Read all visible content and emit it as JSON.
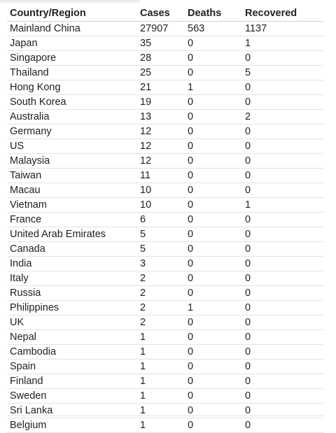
{
  "table": {
    "headers": {
      "country": "Country/Region",
      "cases": "Cases",
      "deaths": "Deaths",
      "recovered": "Recovered"
    },
    "rows": [
      [
        "Mainland China",
        "27907",
        "563",
        "1137"
      ],
      [
        "Japan",
        "35",
        "0",
        "1"
      ],
      [
        "Singapore",
        "28",
        "0",
        "0"
      ],
      [
        "Thailand",
        "25",
        "0",
        "5"
      ],
      [
        "Hong Kong",
        "21",
        "1",
        "0"
      ],
      [
        "South Korea",
        "19",
        "0",
        "0"
      ],
      [
        "Australia",
        "13",
        "0",
        "2"
      ],
      [
        "Germany",
        "12",
        "0",
        "0"
      ],
      [
        "US",
        "12",
        "0",
        "0"
      ],
      [
        "Malaysia",
        "12",
        "0",
        "0"
      ],
      [
        "Taiwan",
        "11",
        "0",
        "0"
      ],
      [
        "Macau",
        "10",
        "0",
        "0"
      ],
      [
        "Vietnam",
        "10",
        "0",
        "1"
      ],
      [
        "France",
        "6",
        "0",
        "0"
      ],
      [
        "United Arab Emirates",
        "5",
        "0",
        "0"
      ],
      [
        "Canada",
        "5",
        "0",
        "0"
      ],
      [
        "India",
        "3",
        "0",
        "0"
      ],
      [
        "Italy",
        "2",
        "0",
        "0"
      ],
      [
        "Russia",
        "2",
        "0",
        "0"
      ],
      [
        "Philippines",
        "2",
        "1",
        "0"
      ],
      [
        "UK",
        "2",
        "0",
        "0"
      ],
      [
        "Nepal",
        "1",
        "0",
        "0"
      ],
      [
        "Cambodia",
        "1",
        "0",
        "0"
      ],
      [
        "Spain",
        "1",
        "0",
        "0"
      ],
      [
        "Finland",
        "1",
        "0",
        "0"
      ],
      [
        "Sweden",
        "1",
        "0",
        "0"
      ],
      [
        "Sri Lanka",
        "1",
        "0",
        "0"
      ],
      [
        "Belgium",
        "1",
        "0",
        "0"
      ]
    ]
  }
}
